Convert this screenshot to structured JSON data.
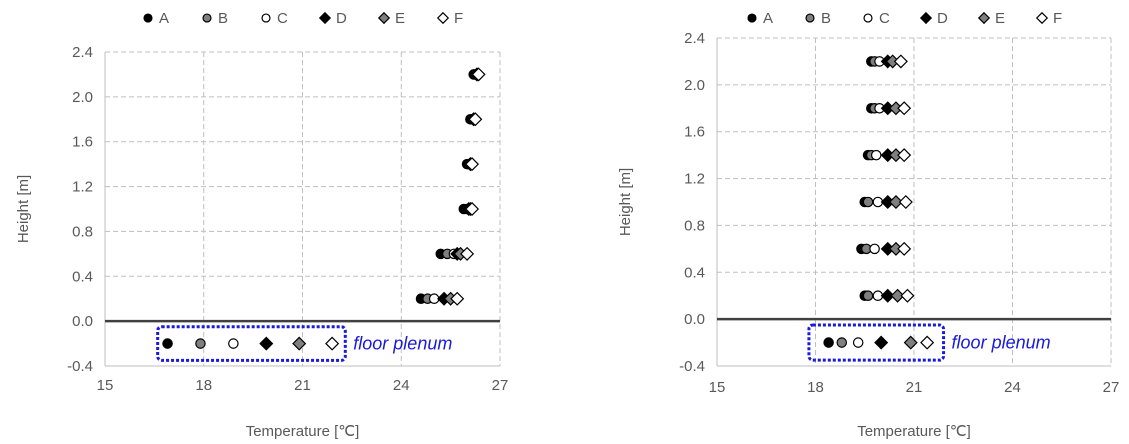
{
  "chart_data": [
    {
      "type": "scatter",
      "xlabel": "Temperature [℃]",
      "ylabel": "Height [m]",
      "xlim": [
        15,
        27
      ],
      "ylim": [
        -0.4,
        2.4
      ],
      "x_ticks": [
        "15",
        "18",
        "21",
        "24",
        "27"
      ],
      "y_ticks": [
        "-0.4",
        "0.0",
        "0.4",
        "0.8",
        "1.2",
        "1.6",
        "2.0",
        "2.4"
      ],
      "grid": true,
      "legend_position": "top",
      "series": [
        {
          "name": "A",
          "marker": "circle",
          "fill": "#000000",
          "points": [
            {
              "x": 24.6,
              "y": 0.2
            },
            {
              "x": 25.2,
              "y": 0.6
            },
            {
              "x": 25.9,
              "y": 1.0
            },
            {
              "x": 26.0,
              "y": 1.4
            },
            {
              "x": 26.1,
              "y": 1.8
            },
            {
              "x": 26.2,
              "y": 2.2
            },
            {
              "x": 16.9,
              "y": -0.2
            }
          ]
        },
        {
          "name": "B",
          "marker": "circle",
          "fill": "#7f7f7f",
          "points": [
            {
              "x": 24.8,
              "y": 0.2
            },
            {
              "x": 25.4,
              "y": 0.6
            },
            {
              "x": 26.0,
              "y": 1.0
            },
            {
              "x": 26.05,
              "y": 1.4
            },
            {
              "x": 26.15,
              "y": 1.8
            },
            {
              "x": 26.25,
              "y": 2.2
            },
            {
              "x": 17.9,
              "y": -0.2
            }
          ]
        },
        {
          "name": "C",
          "marker": "circle",
          "fill": "#ffffff",
          "points": [
            {
              "x": 25.0,
              "y": 0.2
            },
            {
              "x": 25.6,
              "y": 0.6
            },
            {
              "x": 26.05,
              "y": 1.0
            },
            {
              "x": 26.1,
              "y": 1.4
            },
            {
              "x": 26.2,
              "y": 1.8
            },
            {
              "x": 26.3,
              "y": 2.2
            },
            {
              "x": 18.9,
              "y": -0.2
            }
          ]
        },
        {
          "name": "D",
          "marker": "diamond",
          "fill": "#000000",
          "points": [
            {
              "x": 25.3,
              "y": 0.2
            },
            {
              "x": 25.7,
              "y": 0.6
            },
            {
              "x": 26.05,
              "y": 1.0
            },
            {
              "x": 26.1,
              "y": 1.4
            },
            {
              "x": 26.2,
              "y": 1.8
            },
            {
              "x": 26.3,
              "y": 2.2
            },
            {
              "x": 19.9,
              "y": -0.2
            }
          ]
        },
        {
          "name": "E",
          "marker": "diamond",
          "fill": "#7f7f7f",
          "points": [
            {
              "x": 25.5,
              "y": 0.2
            },
            {
              "x": 25.8,
              "y": 0.6
            },
            {
              "x": 26.1,
              "y": 1.0
            },
            {
              "x": 26.1,
              "y": 1.4
            },
            {
              "x": 26.2,
              "y": 1.8
            },
            {
              "x": 26.3,
              "y": 2.2
            },
            {
              "x": 20.9,
              "y": -0.2
            }
          ]
        },
        {
          "name": "F",
          "marker": "diamond",
          "fill": "#ffffff",
          "points": [
            {
              "x": 25.7,
              "y": 0.2
            },
            {
              "x": 26.0,
              "y": 0.6
            },
            {
              "x": 26.15,
              "y": 1.0
            },
            {
              "x": 26.15,
              "y": 1.4
            },
            {
              "x": 26.25,
              "y": 1.8
            },
            {
              "x": 26.35,
              "y": 2.2
            },
            {
              "x": 21.9,
              "y": -0.2
            }
          ]
        }
      ],
      "annotation": {
        "text": "floor plenum",
        "color": "#1a1adc",
        "box_x_range": [
          16.6,
          22.3
        ]
      }
    },
    {
      "type": "scatter",
      "xlabel": "Temperature [℃]",
      "ylabel": "Height [m]",
      "xlim": [
        15,
        27
      ],
      "ylim": [
        -0.4,
        2.4
      ],
      "x_ticks": [
        "15",
        "18",
        "21",
        "24",
        "27"
      ],
      "y_ticks": [
        "-0.4",
        "0.0",
        "0.4",
        "0.8",
        "1.2",
        "1.6",
        "2.0",
        "2.4"
      ],
      "grid": true,
      "legend_position": "top",
      "series": [
        {
          "name": "A",
          "marker": "circle",
          "fill": "#000000",
          "points": [
            {
              "x": 19.5,
              "y": 0.2
            },
            {
              "x": 19.4,
              "y": 0.6
            },
            {
              "x": 19.5,
              "y": 1.0
            },
            {
              "x": 19.6,
              "y": 1.4
            },
            {
              "x": 19.7,
              "y": 1.8
            },
            {
              "x": 19.7,
              "y": 2.2
            },
            {
              "x": 18.4,
              "y": -0.2
            }
          ]
        },
        {
          "name": "B",
          "marker": "circle",
          "fill": "#7f7f7f",
          "points": [
            {
              "x": 19.6,
              "y": 0.2
            },
            {
              "x": 19.55,
              "y": 0.6
            },
            {
              "x": 19.6,
              "y": 1.0
            },
            {
              "x": 19.7,
              "y": 1.4
            },
            {
              "x": 19.8,
              "y": 1.8
            },
            {
              "x": 19.8,
              "y": 2.2
            },
            {
              "x": 18.8,
              "y": -0.2
            }
          ]
        },
        {
          "name": "C",
          "marker": "circle",
          "fill": "#ffffff",
          "points": [
            {
              "x": 19.9,
              "y": 0.2
            },
            {
              "x": 19.8,
              "y": 0.6
            },
            {
              "x": 19.9,
              "y": 1.0
            },
            {
              "x": 19.85,
              "y": 1.4
            },
            {
              "x": 19.95,
              "y": 1.8
            },
            {
              "x": 19.95,
              "y": 2.2
            },
            {
              "x": 19.3,
              "y": -0.2
            }
          ]
        },
        {
          "name": "D",
          "marker": "diamond",
          "fill": "#000000",
          "points": [
            {
              "x": 20.2,
              "y": 0.2
            },
            {
              "x": 20.2,
              "y": 0.6
            },
            {
              "x": 20.2,
              "y": 1.0
            },
            {
              "x": 20.2,
              "y": 1.4
            },
            {
              "x": 20.2,
              "y": 1.8
            },
            {
              "x": 20.2,
              "y": 2.2
            },
            {
              "x": 20.0,
              "y": -0.2
            }
          ]
        },
        {
          "name": "E",
          "marker": "diamond",
          "fill": "#7f7f7f",
          "points": [
            {
              "x": 20.5,
              "y": 0.2
            },
            {
              "x": 20.45,
              "y": 0.6
            },
            {
              "x": 20.45,
              "y": 1.0
            },
            {
              "x": 20.45,
              "y": 1.4
            },
            {
              "x": 20.45,
              "y": 1.8
            },
            {
              "x": 20.35,
              "y": 2.2
            },
            {
              "x": 20.9,
              "y": -0.2
            }
          ]
        },
        {
          "name": "F",
          "marker": "diamond",
          "fill": "#ffffff",
          "points": [
            {
              "x": 20.8,
              "y": 0.2
            },
            {
              "x": 20.7,
              "y": 0.6
            },
            {
              "x": 20.75,
              "y": 1.0
            },
            {
              "x": 20.7,
              "y": 1.4
            },
            {
              "x": 20.7,
              "y": 1.8
            },
            {
              "x": 20.6,
              "y": 2.2
            },
            {
              "x": 21.4,
              "y": -0.2
            }
          ]
        }
      ],
      "annotation": {
        "text": "floor plenum",
        "color": "#1a1adc",
        "box_x_range": [
          17.8,
          21.9
        ]
      }
    }
  ]
}
